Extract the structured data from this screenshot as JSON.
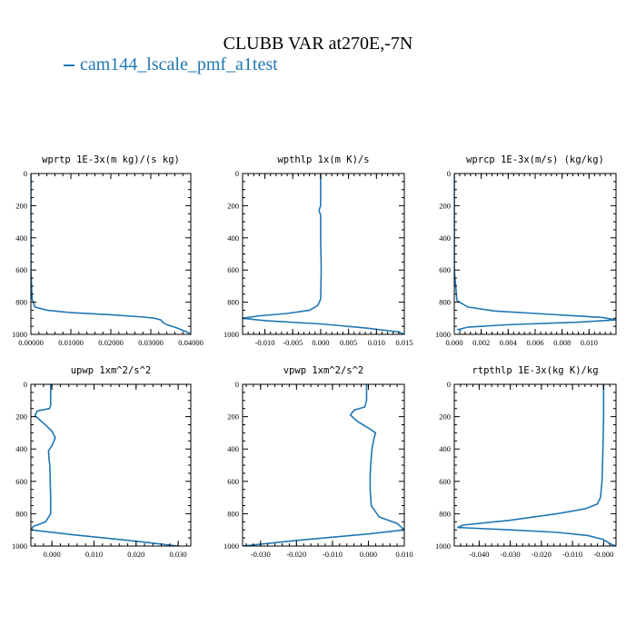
{
  "title": "CLUBB VAR at270E,-7N",
  "legend": {
    "label": "cam144_lscale_pmf_a1test",
    "color": "#1f77b4"
  },
  "chart_data": [
    {
      "type": "line",
      "title": "wprtp  1E-3x(m kg)/(s kg)",
      "xlim": [
        0.0,
        0.04
      ],
      "ylim": [
        1000,
        0
      ],
      "xticks": [
        0.0,
        0.01,
        0.02,
        0.03,
        0.04
      ],
      "xticklabels": [
        "0.00000",
        "0.01000",
        "0.02000",
        "0.03000",
        "0.04000"
      ],
      "yticks": [
        0,
        200,
        400,
        600,
        800,
        1000
      ],
      "yticklabels": [
        "0",
        "200",
        "400",
        "600",
        "800",
        "1000"
      ],
      "series": [
        {
          "name": "cam144_lscale_pmf_a1test",
          "x": [
            0,
            0,
            0,
            0,
            0.0003,
            0.001,
            0.004,
            0.01,
            0.02,
            0.028,
            0.031,
            0.0325,
            0.033,
            0.034,
            0.0365,
            0.039,
            0.04
          ],
          "y": [
            0,
            200,
            400,
            600,
            780,
            830,
            850,
            865,
            878,
            892,
            900,
            910,
            925,
            940,
            960,
            985,
            1000
          ]
        }
      ]
    },
    {
      "type": "line",
      "title": "wpthlp  1x(m K)/s",
      "xlim": [
        -0.014,
        0.015
      ],
      "ylim": [
        1000,
        0
      ],
      "xticks": [
        -0.01,
        -0.005,
        0.0,
        0.005,
        0.01,
        0.015
      ],
      "xticklabels": [
        "-0.010",
        "-0.005",
        "0.000",
        "0.005",
        "0.010",
        "0.015"
      ],
      "yticks": [
        0,
        200,
        400,
        600,
        800,
        1000
      ],
      "yticklabels": [
        "0",
        "200",
        "400",
        "600",
        "800",
        "1000"
      ],
      "series": [
        {
          "name": "cam144_lscale_pmf_a1test",
          "x": [
            0,
            0,
            0,
            -0.0003,
            0,
            0,
            0.0001,
            0,
            -0.0005,
            -0.002,
            -0.006,
            -0.011,
            -0.014,
            -0.01,
            0,
            0.008,
            0.014,
            0.015
          ],
          "y": [
            0,
            100,
            200,
            230,
            260,
            400,
            600,
            780,
            820,
            850,
            870,
            885,
            900,
            915,
            935,
            960,
            985,
            1000
          ]
        }
      ]
    },
    {
      "type": "line",
      "title": "wprcp  1E-3x(m/s) (kg/kg)",
      "xlim": [
        0.0,
        0.012
      ],
      "ylim": [
        1000,
        0
      ],
      "xticks": [
        0.0,
        0.002,
        0.004,
        0.006,
        0.008,
        0.01
      ],
      "xticklabels": [
        "0.000",
        "0.002",
        "0.004",
        "0.006",
        "0.008",
        "0.010"
      ],
      "yticks": [
        0,
        200,
        400,
        600,
        800,
        1000
      ],
      "yticklabels": [
        "0",
        "200",
        "400",
        "600",
        "800",
        "1000"
      ],
      "series": [
        {
          "name": "cam144_lscale_pmf_a1test",
          "x": [
            0,
            0,
            0,
            0,
            0.0002,
            0.001,
            0.003,
            0.007,
            0.011,
            0.012,
            0.009,
            0.004,
            0.001,
            0.0003,
            0.0005
          ],
          "y": [
            0,
            200,
            400,
            600,
            790,
            830,
            855,
            875,
            895,
            910,
            925,
            940,
            955,
            970,
            980
          ]
        }
      ]
    },
    {
      "type": "line",
      "title": "upwp  1xm^2/s^2",
      "xlim": [
        -0.005,
        0.033
      ],
      "ylim": [
        1000,
        0
      ],
      "xticks": [
        0.0,
        0.01,
        0.02,
        0.03
      ],
      "xticklabels": [
        "0.000",
        "0.010",
        "0.020",
        "0.030"
      ],
      "yticks": [
        0,
        200,
        400,
        600,
        800,
        1000
      ],
      "yticklabels": [
        "0",
        "200",
        "400",
        "600",
        "800",
        "1000"
      ],
      "series": [
        {
          "name": "cam144_lscale_pmf_a1test",
          "x": [
            -0.0003,
            -0.0003,
            -0.0006,
            -0.0035,
            -0.004,
            -0.002,
            0.0,
            0.0008,
            0.0,
            -0.0008,
            -0.0007,
            -0.0005,
            -0.0004,
            -0.0003,
            -0.0003,
            -0.0015,
            -0.0045,
            -0.005,
            0.005,
            0.02,
            0.03
          ],
          "y": [
            0,
            130,
            150,
            165,
            195,
            240,
            290,
            330,
            380,
            410,
            460,
            500,
            600,
            700,
            800,
            850,
            880,
            900,
            930,
            970,
            1000
          ]
        }
      ]
    },
    {
      "type": "line",
      "title": "vpwp  1xm^2/s^2",
      "xlim": [
        -0.035,
        0.01
      ],
      "ylim": [
        1000,
        0
      ],
      "xticks": [
        -0.03,
        -0.02,
        -0.01,
        0.0,
        0.01
      ],
      "xticklabels": [
        "-0.030",
        "-0.020",
        "-0.010",
        "0.000",
        "0.010"
      ],
      "yticks": [
        0,
        200,
        400,
        600,
        800,
        1000
      ],
      "yticklabels": [
        "0",
        "200",
        "400",
        "600",
        "800",
        "1000"
      ],
      "series": [
        {
          "name": "cam144_lscale_pmf_a1test",
          "x": [
            -0.0005,
            -0.0005,
            -0.001,
            -0.004,
            -0.005,
            -0.003,
            0.0,
            0.002,
            0.0015,
            0.001,
            0.0007,
            0.0005,
            0.0005,
            0.0008,
            0.003,
            0.008,
            0.01,
            0.0,
            -0.02,
            -0.035
          ],
          "y": [
            0,
            100,
            140,
            160,
            190,
            230,
            270,
            300,
            340,
            400,
            480,
            560,
            650,
            750,
            820,
            860,
            900,
            925,
            965,
            1000
          ]
        }
      ]
    },
    {
      "type": "line",
      "title": "rtpthlp  1E-3x(kg K)/kg",
      "xlim": [
        -0.048,
        0.004
      ],
      "ylim": [
        1000,
        0
      ],
      "xticks": [
        -0.04,
        -0.03,
        -0.02,
        -0.01,
        0.0
      ],
      "xticklabels": [
        "-0.040",
        "-0.030",
        "-0.020",
        "-0.010",
        "-0.000"
      ],
      "yticks": [
        0,
        200,
        400,
        600,
        800,
        1000
      ],
      "yticklabels": [
        "0",
        "200",
        "400",
        "600",
        "800",
        "1000"
      ],
      "series": [
        {
          "name": "cam144_lscale_pmf_a1test",
          "x": [
            0,
            0,
            -0.0002,
            -0.0005,
            -0.001,
            -0.002,
            -0.006,
            -0.015,
            -0.03,
            -0.045,
            -0.047,
            -0.03,
            -0.015,
            -0.005,
            0.0,
            0.002,
            0.004
          ],
          "y": [
            0,
            200,
            400,
            600,
            700,
            740,
            770,
            800,
            840,
            870,
            885,
            900,
            915,
            935,
            960,
            985,
            1000
          ]
        }
      ]
    }
  ]
}
